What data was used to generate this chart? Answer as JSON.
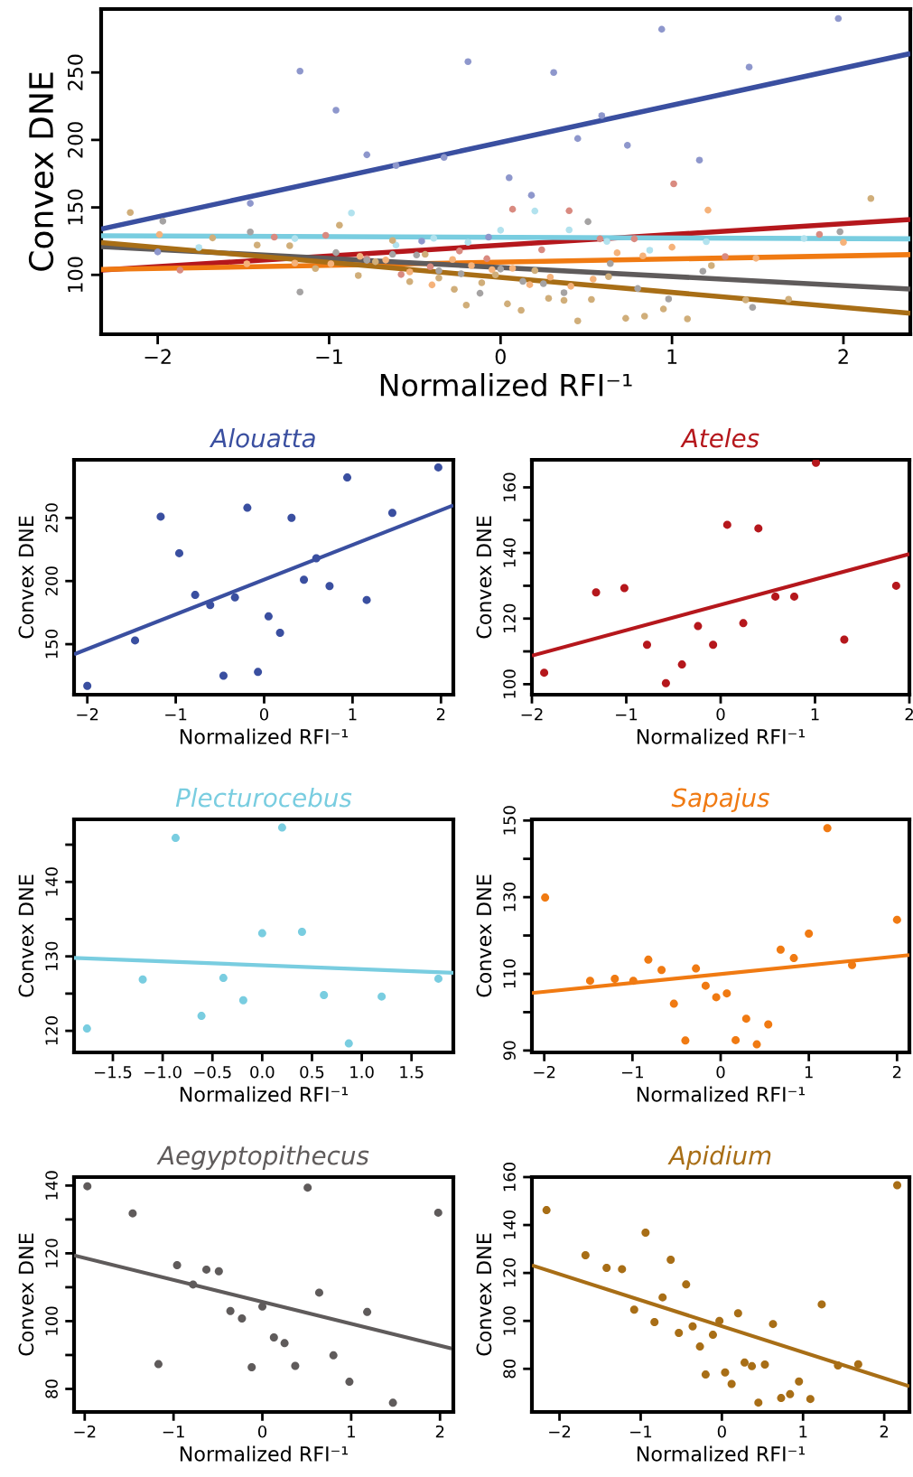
{
  "chart_data": [
    {
      "type": "scatter",
      "xlabel": "Normalized RFI⁻¹",
      "ylabel": "Convex DNE",
      "xlim": [
        -2.33,
        2.39
      ],
      "ylim": [
        56,
        297
      ],
      "xticks": [
        {
          "value": -2,
          "label": "−2"
        },
        {
          "value": -1,
          "label": "−1"
        },
        0,
        1,
        2
      ],
      "yticks": [
        100,
        150,
        200,
        250
      ],
      "grid": false,
      "series": [
        {
          "marker": "circle",
          "color": "#8e97cc",
          "x": [
            -2.0,
            -1.46,
            -1.17,
            -0.96,
            -0.78,
            -0.61,
            -0.46,
            -0.33,
            -0.19,
            -0.07,
            0.05,
            0.18,
            0.31,
            0.45,
            0.59,
            0.74,
            0.94,
            1.16,
            1.45,
            1.97
          ],
          "values": [
            117,
            153,
            251,
            222,
            189,
            181,
            125,
            187,
            258,
            128,
            172,
            159,
            250,
            201,
            218,
            196,
            282,
            185,
            254,
            290
          ]
        },
        {
          "marker": "circle",
          "color": "#d98a80",
          "x": [
            -1.87,
            -1.32,
            -1.02,
            -0.78,
            -0.41,
            -0.58,
            -0.24,
            -0.08,
            0.07,
            0.24,
            0.4,
            0.58,
            0.78,
            1.01,
            1.31,
            1.86
          ],
          "values": [
            103.5,
            128,
            129.3,
            112,
            106,
            100.3,
            117.7,
            112,
            148.6,
            118.6,
            147.5,
            126.7,
            126.7,
            167.5,
            113.6,
            130
          ]
        },
        {
          "marker": "circle",
          "color": "#b2e2ee",
          "x": [
            -1.76,
            -1.2,
            -0.87,
            -0.61,
            -0.39,
            -0.19,
            0.0,
            0.2,
            0.4,
            0.62,
            0.87,
            1.2,
            1.77
          ],
          "values": [
            120.3,
            126.9,
            145.9,
            122.0,
            127.1,
            124.1,
            133.1,
            147.3,
            133.3,
            124.8,
            118.3,
            124.6,
            127.0
          ]
        },
        {
          "marker": "circle",
          "color": "#f5b27a",
          "x": [
            -1.99,
            -1.48,
            -1.2,
            -0.99,
            -0.82,
            -0.67,
            -0.53,
            -0.4,
            -0.28,
            -0.17,
            -0.05,
            0.07,
            0.17,
            0.29,
            0.41,
            0.54,
            0.68,
            0.83,
            1.0,
            1.21,
            1.49,
            2.0
          ],
          "values": [
            129.9,
            108.2,
            108.7,
            108.2,
            113.7,
            111.0,
            102.2,
            92.6,
            111.4,
            106.9,
            103.9,
            104.9,
            92.7,
            98.3,
            91.6,
            96.8,
            116.3,
            114.1,
            120.5,
            148.0,
            112.3,
            124.1
          ]
        },
        {
          "marker": "circle",
          "color": "#a5a3a3",
          "x": [
            -1.97,
            -1.46,
            -1.17,
            -0.96,
            -0.78,
            -0.63,
            -0.49,
            -0.36,
            -0.23,
            -0.12,
            0.0,
            0.13,
            0.25,
            0.37,
            0.51,
            0.64,
            0.8,
            0.98,
            1.18,
            1.47,
            1.98
          ],
          "values": [
            139.8,
            131.8,
            87.3,
            116.5,
            110.8,
            115.2,
            114.7,
            103.0,
            100.8,
            86.4,
            104.3,
            95.2,
            93.5,
            86.8,
            139.4,
            108.4,
            89.9,
            82.1,
            102.7,
            75.9,
            132.0
          ]
        },
        {
          "marker": "circle",
          "color": "#d0ae7a",
          "x": [
            -2.16,
            -1.68,
            -1.42,
            -1.23,
            -1.08,
            -0.94,
            -0.83,
            -0.73,
            -0.63,
            -0.53,
            -0.44,
            -0.36,
            -0.27,
            -0.2,
            -0.11,
            -0.03,
            0.04,
            0.12,
            0.2,
            0.28,
            0.37,
            0.45,
            0.53,
            0.63,
            0.73,
            0.84,
            0.95,
            1.09,
            1.23,
            1.43,
            1.68,
            2.16
          ],
          "values": [
            146.2,
            127.4,
            122.1,
            121.6,
            104.7,
            136.8,
            99.5,
            109.8,
            125.5,
            95.0,
            115.2,
            97.7,
            89.3,
            77.6,
            94.2,
            100.0,
            78.5,
            73.7,
            103.2,
            82.6,
            81.1,
            65.9,
            81.8,
            98.7,
            67.8,
            69.4,
            74.7,
            67.4,
            106.9,
            81.4,
            81.9,
            156.6
          ]
        },
        {
          "type": "line",
          "marker": "none",
          "color": "#3a4fa0",
          "x": [
            -2.33,
            2.39
          ],
          "values": [
            134,
            264
          ]
        },
        {
          "type": "line",
          "marker": "none",
          "color": "#b5171c",
          "x": [
            -2.33,
            2.39
          ],
          "values": [
            103.5,
            141
          ]
        },
        {
          "type": "line",
          "marker": "none",
          "color": "#79cde0",
          "x": [
            -2.33,
            2.39
          ],
          "values": [
            129,
            126.7
          ]
        },
        {
          "type": "line",
          "marker": "none",
          "color": "#f07a12",
          "x": [
            -2.33,
            2.39
          ],
          "values": [
            104,
            115
          ]
        },
        {
          "type": "line",
          "marker": "none",
          "color": "#5f5b5b",
          "x": [
            -2.33,
            2.39
          ],
          "values": [
            121,
            89.5
          ]
        },
        {
          "type": "line",
          "marker": "none",
          "color": "#a86e16",
          "x": [
            -2.33,
            2.39
          ],
          "values": [
            124,
            71.6
          ]
        }
      ]
    },
    {
      "type": "scatter",
      "title": "Alouatta",
      "xlabel": "Normalized RFI⁻¹",
      "ylabel": "Convex DNE",
      "xlim": [
        -2.15,
        2.14
      ],
      "ylim": [
        110,
        296
      ],
      "xticks": [
        {
          "value": -2,
          "label": "−2"
        },
        {
          "value": -1,
          "label": "−1"
        },
        0,
        1,
        2
      ],
      "yticks": [
        150,
        200,
        250
      ],
      "grid": false,
      "series": [
        {
          "marker": "circle",
          "color": "#3a4fa0",
          "x": [
            -2.0,
            -1.46,
            -1.17,
            -0.96,
            -0.78,
            -0.61,
            -0.46,
            -0.33,
            -0.19,
            -0.07,
            0.05,
            0.18,
            0.31,
            0.45,
            0.59,
            0.74,
            0.94,
            1.16,
            1.45,
            1.97
          ],
          "values": [
            117,
            153,
            251,
            222,
            189,
            181,
            125,
            187,
            258,
            128,
            172,
            159,
            250,
            201,
            218,
            196,
            282,
            185,
            254,
            290
          ]
        },
        {
          "type": "line",
          "marker": "none",
          "color": "#3a4fa0",
          "x": [
            -2.15,
            2.14
          ],
          "values": [
            142,
            260
          ]
        }
      ]
    },
    {
      "type": "scatter",
      "title": "Ateles",
      "xlabel": "Normalized RFI⁻¹",
      "ylabel": "Convex DNE",
      "xlim": [
        -2.0,
        2.0
      ],
      "ylim": [
        96.8,
        168.4
      ],
      "xticks": [
        {
          "value": -2,
          "label": "−2"
        },
        {
          "value": -1,
          "label": "−1"
        },
        0,
        1,
        2
      ],
      "yticks": [
        100,
        {
          "value": 110,
          "label": null
        },
        120,
        {
          "value": 130,
          "label": null
        },
        140,
        {
          "value": 150,
          "label": null
        },
        160
      ],
      "grid": false,
      "series": [
        {
          "marker": "circle",
          "color": "#b5171c",
          "x": [
            -1.87,
            -1.32,
            -1.02,
            -0.78,
            -0.41,
            -0.58,
            -0.24,
            -0.08,
            0.07,
            0.24,
            0.4,
            0.58,
            0.78,
            1.01,
            1.31,
            1.86
          ],
          "values": [
            103.5,
            128,
            129.3,
            112,
            106,
            100.3,
            117.7,
            112,
            148.6,
            118.6,
            147.5,
            126.7,
            126.7,
            167.5,
            113.6,
            130
          ]
        },
        {
          "type": "line",
          "marker": "none",
          "color": "#b5171c",
          "x": [
            -2.0,
            2.0
          ],
          "values": [
            108.7,
            139.7
          ]
        }
      ]
    },
    {
      "type": "scatter",
      "title": "Plecturocebus",
      "xlabel": "Normalized RFI⁻¹",
      "ylabel": "Convex DNE",
      "xlim": [
        -1.89,
        1.92
      ],
      "ylim": [
        117.1,
        148.4
      ],
      "xticks": [
        {
          "value": -1.5,
          "label": "−1.5"
        },
        {
          "value": -1.0,
          "label": "−1.0"
        },
        {
          "value": -0.5,
          "label": "−0.5"
        },
        {
          "value": 0,
          "label": "0.0"
        },
        0.5,
        {
          "value": 1,
          "label": "1.0"
        },
        1.5
      ],
      "yticks": [
        120,
        {
          "value": 125,
          "label": null
        },
        130,
        {
          "value": 135,
          "label": null
        },
        140,
        {
          "value": 145,
          "label": null
        }
      ],
      "grid": false,
      "series": [
        {
          "marker": "circle",
          "color": "#79cde0",
          "x": [
            -1.76,
            -1.2,
            -0.87,
            -0.61,
            -0.39,
            -0.19,
            0.0,
            0.2,
            0.4,
            0.62,
            0.87,
            1.2,
            1.77
          ],
          "values": [
            120.3,
            126.9,
            145.9,
            122.0,
            127.1,
            124.1,
            133.1,
            147.3,
            133.3,
            124.8,
            118.3,
            124.6,
            127.0
          ]
        },
        {
          "type": "line",
          "marker": "none",
          "color": "#79cde0",
          "x": [
            -1.89,
            1.92
          ],
          "values": [
            129.8,
            127.8
          ]
        }
      ]
    },
    {
      "type": "scatter",
      "title": "Sapajus",
      "xlabel": "Normalized RFI⁻¹",
      "ylabel": "Convex DNE",
      "xlim": [
        -2.14,
        2.14
      ],
      "ylim": [
        89.5,
        150.3
      ],
      "xticks": [
        {
          "value": -2,
          "label": "−2"
        },
        {
          "value": -1,
          "label": "−1"
        },
        0,
        1,
        2
      ],
      "yticks": [
        90,
        {
          "value": 100,
          "label": null
        },
        110,
        {
          "value": 120,
          "label": null
        },
        130,
        {
          "value": 140,
          "label": null
        },
        150
      ],
      "grid": false,
      "series": [
        {
          "marker": "circle",
          "color": "#f07a12",
          "x": [
            -1.99,
            -1.48,
            -1.2,
            -0.99,
            -0.82,
            -0.67,
            -0.53,
            -0.4,
            -0.28,
            -0.17,
            -0.05,
            0.07,
            0.17,
            0.29,
            0.41,
            0.54,
            0.68,
            0.83,
            1.0,
            1.21,
            1.49,
            2.0
          ],
          "values": [
            129.9,
            108.2,
            108.7,
            108.2,
            113.7,
            111.0,
            102.2,
            92.6,
            111.4,
            106.9,
            103.9,
            104.9,
            92.7,
            98.3,
            91.6,
            96.8,
            116.3,
            114.1,
            120.5,
            148.0,
            112.3,
            124.1
          ]
        },
        {
          "type": "line",
          "marker": "none",
          "color": "#f07a12",
          "x": [
            -2.14,
            2.14
          ],
          "values": [
            105.0,
            114.9
          ]
        }
      ]
    },
    {
      "type": "scatter",
      "title": "Aegyptopithecus",
      "xlabel": "Normalized RFI⁻¹",
      "ylabel": "Convex DNE",
      "xlim": [
        -2.12,
        2.15
      ],
      "ylim": [
        73.2,
        142.5
      ],
      "xticks": [
        {
          "value": -2,
          "label": "−2"
        },
        {
          "value": -1,
          "label": "−1"
        },
        0,
        1,
        2
      ],
      "yticks": [
        80,
        {
          "value": 90,
          "label": null
        },
        100,
        {
          "value": 110,
          "label": null
        },
        120,
        {
          "value": 130,
          "label": null
        },
        140
      ],
      "grid": false,
      "series": [
        {
          "marker": "circle",
          "color": "#5f5b5b",
          "x": [
            -1.97,
            -1.46,
            -1.17,
            -0.96,
            -0.78,
            -0.63,
            -0.49,
            -0.36,
            -0.23,
            -0.12,
            0.0,
            0.13,
            0.25,
            0.37,
            0.51,
            0.64,
            0.8,
            0.98,
            1.18,
            1.47,
            1.98
          ],
          "values": [
            139.8,
            131.8,
            87.3,
            116.5,
            110.8,
            115.2,
            114.7,
            103.0,
            100.8,
            86.4,
            104.3,
            95.2,
            93.5,
            86.8,
            139.4,
            108.4,
            89.9,
            82.1,
            102.7,
            75.9,
            132.0
          ]
        },
        {
          "type": "line",
          "marker": "none",
          "color": "#5f5b5b",
          "x": [
            -2.12,
            2.13
          ],
          "values": [
            119.4,
            91.9
          ]
        }
      ]
    },
    {
      "type": "scatter",
      "title": "Apidium",
      "xlabel": "Normalized RFI⁻¹",
      "ylabel": "Convex DNE",
      "xlim": [
        -2.34,
        2.31
      ],
      "ylim": [
        62.0,
        160
      ],
      "xticks": [
        {
          "value": -2,
          "label": "−2"
        },
        {
          "value": -1,
          "label": "−1"
        },
        0,
        1,
        2
      ],
      "yticks": [
        80,
        100,
        120,
        140,
        160
      ],
      "grid": false,
      "series": [
        {
          "marker": "circle",
          "color": "#a86e16",
          "x": [
            -2.16,
            -1.68,
            -1.42,
            -1.23,
            -1.08,
            -0.94,
            -0.83,
            -0.73,
            -0.63,
            -0.53,
            -0.44,
            -0.36,
            -0.27,
            -0.2,
            -0.11,
            -0.03,
            0.04,
            0.12,
            0.2,
            0.28,
            0.37,
            0.45,
            0.53,
            0.63,
            0.73,
            0.84,
            0.95,
            1.09,
            1.23,
            1.43,
            1.68,
            2.16
          ],
          "values": [
            146.2,
            127.4,
            122.1,
            121.6,
            104.7,
            136.8,
            99.5,
            109.8,
            125.5,
            95.0,
            115.2,
            97.7,
            89.3,
            77.6,
            94.2,
            100.0,
            78.5,
            73.7,
            103.2,
            82.6,
            81.1,
            65.9,
            81.8,
            98.7,
            67.8,
            69.4,
            74.7,
            67.4,
            106.9,
            81.4,
            81.9,
            156.6
          ]
        },
        {
          "type": "line",
          "marker": "none",
          "color": "#a86e16",
          "x": [
            -2.34,
            2.31
          ],
          "values": [
            123.2,
            72.7
          ]
        }
      ]
    }
  ]
}
